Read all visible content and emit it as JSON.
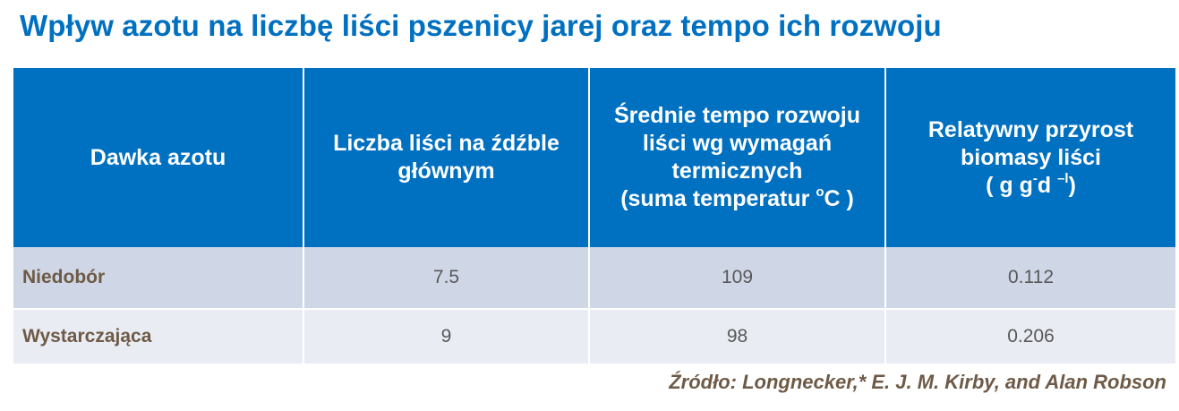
{
  "title": "Wpływ azotu na liczbę liści pszenicy jarej oraz tempo ich rozwoju",
  "table": {
    "headers": {
      "col1": "Dawka azotu",
      "col2": "Liczba liści na źdźble głównym",
      "col3_main": "Średnie tempo rozwoju liści wg wymagań termicznych",
      "col3_unit_pre": "(suma temperatur ",
      "col3_unit_sup": "o",
      "col3_unit_post": "C )",
      "col4_main": "Relatywny przyrost biomasy liści",
      "col4_unit_a": "( g g",
      "col4_unit_sup1": "-",
      "col4_unit_b": "d ",
      "col4_unit_sup2": "–l",
      "col4_unit_c": ")"
    },
    "rows": [
      {
        "label": "Niedobór",
        "leaves": "7.5",
        "rate": "109",
        "biomass": "0.112"
      },
      {
        "label": "Wystarczająca",
        "leaves": "9",
        "rate": "98",
        "biomass": "0.206"
      }
    ]
  },
  "source": "Źródło: Longnecker,* E. J. M. Kirby, and Alan  Robson"
}
